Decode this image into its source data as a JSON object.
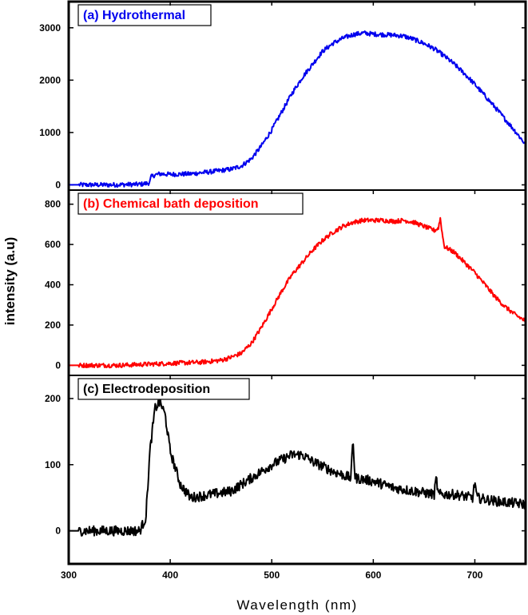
{
  "chart_data": {
    "type": "line",
    "layout": "three vertically stacked panels sharing the x-axis",
    "xlabel": "Wavelength (nm)",
    "ylabel": "intensity (a.u)",
    "xlim": [
      300,
      750
    ],
    "x_ticks": [
      300,
      400,
      500,
      600,
      700
    ],
    "panels": [
      {
        "label": "(a) Hydrothermal",
        "color": "#0000ee",
        "ylim": [
          -100,
          3500
        ],
        "y_ticks": [
          0,
          1000,
          2000,
          3000
        ],
        "series": [
          {
            "name": "Hydrothermal",
            "x": [
              300,
              340,
              370,
              378,
              380,
              381,
              385,
              390,
              400,
              420,
              440,
              460,
              470,
              480,
              490,
              500,
              510,
              520,
              530,
              540,
              550,
              560,
              570,
              580,
              590,
              600,
              610,
              620,
              630,
              640,
              650,
              660,
              670,
              680,
              690,
              700,
              710,
              720,
              730,
              740,
              750
            ],
            "y": [
              0,
              0,
              10,
              30,
              50,
              150,
              190,
              210,
              200,
              210,
              250,
              300,
              360,
              500,
              750,
              1050,
              1400,
              1750,
              2050,
              2300,
              2550,
              2700,
              2800,
              2870,
              2900,
              2880,
              2870,
              2860,
              2840,
              2780,
              2700,
              2600,
              2460,
              2300,
              2120,
              1920,
              1700,
              1480,
              1250,
              1020,
              770
            ]
          }
        ]
      },
      {
        "label": "(b) Chemical bath deposition",
        "color": "#ff0000",
        "ylim": [
          -50,
          870
        ],
        "y_ticks": [
          0,
          200,
          400,
          600,
          800
        ],
        "series": [
          {
            "name": "Chemical bath deposition",
            "x": [
              300,
              350,
              400,
              430,
              450,
              460,
              470,
              480,
              490,
              500,
              510,
              520,
              530,
              540,
              550,
              560,
              570,
              580,
              590,
              600,
              610,
              620,
              630,
              640,
              650,
              660,
              664,
              666,
              668,
              670,
              680,
              690,
              700,
              710,
              720,
              730,
              740,
              750
            ],
            "y": [
              0,
              0,
              10,
              15,
              25,
              40,
              60,
              110,
              190,
              280,
              370,
              450,
              510,
              570,
              620,
              660,
              690,
              710,
              720,
              720,
              720,
              715,
              720,
              710,
              690,
              670,
              680,
              730,
              650,
              590,
              560,
              510,
              460,
              400,
              340,
              290,
              250,
              220
            ]
          }
        ]
      },
      {
        "label": "(c) Electrodeposition",
        "color": "#000000",
        "ylim": [
          -50,
          235
        ],
        "y_ticks": [
          0,
          100,
          200
        ],
        "series": [
          {
            "name": "Electrodeposition",
            "x": [
              300,
              340,
              370,
              376,
              380,
              385,
              390,
              395,
              400,
              410,
              420,
              440,
              460,
              480,
              500,
              520,
              530,
              540,
              560,
              578,
              580,
              582,
              600,
              620,
              640,
              660,
              662,
              664,
              680,
              698,
              700,
              702,
              720,
              750
            ],
            "y": [
              0,
              0,
              0,
              20,
              120,
              185,
              195,
              175,
              120,
              70,
              50,
              55,
              60,
              80,
              100,
              115,
              115,
              105,
              90,
              80,
              140,
              80,
              75,
              65,
              60,
              55,
              80,
              55,
              55,
              50,
              75,
              50,
              45,
              40
            ]
          }
        ]
      }
    ]
  }
}
